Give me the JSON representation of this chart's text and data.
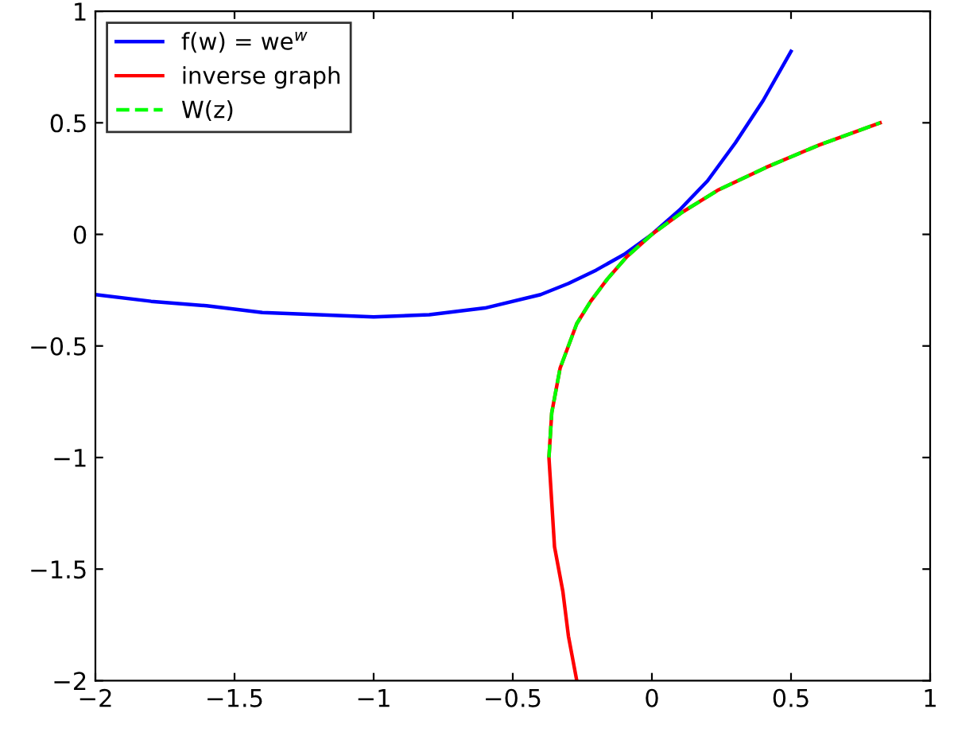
{
  "chart_data": {
    "type": "line",
    "xlim": [
      -2,
      1
    ],
    "ylim": [
      -2,
      1
    ],
    "xticks": [
      {
        "value": -2,
        "label": "−2"
      },
      {
        "value": -1.5,
        "label": "−1.5"
      },
      {
        "value": -1,
        "label": "−1"
      },
      {
        "value": -0.5,
        "label": "−0.5"
      },
      0,
      0.5,
      1
    ],
    "yticks": [
      {
        "value": -2,
        "label": "−2"
      },
      {
        "value": -1.5,
        "label": "−1.5"
      },
      {
        "value": -1,
        "label": "−1"
      },
      {
        "value": -0.5,
        "label": "−0.5"
      },
      0,
      0.5,
      1
    ],
    "grid": false,
    "legend": "top left",
    "series": [
      {
        "name": "f(w) = we$^{w}$",
        "color": "#0000ff",
        "line_style": "solid",
        "x": [
          -2,
          -1.8,
          -1.6,
          -1.4,
          -1.2,
          -1,
          -0.8,
          -0.6,
          -0.4,
          -0.3,
          -0.2,
          -0.1,
          0,
          0.1,
          0.2,
          0.3,
          0.4,
          0.5
        ],
        "values": [
          -0.27,
          -0.3,
          -0.32,
          -0.35,
          -0.36,
          -0.37,
          -0.36,
          -0.33,
          -0.27,
          -0.22,
          -0.16,
          -0.09,
          0,
          0.11,
          0.24,
          0.41,
          0.6,
          0.82
        ]
      },
      {
        "name": "inverse graph",
        "color": "#ff0000",
        "line_style": "solid",
        "x": [
          -0.27,
          -0.3,
          -0.32,
          -0.35,
          -0.36,
          -0.37,
          -0.36,
          -0.33,
          -0.27,
          -0.22,
          -0.16,
          -0.09,
          0,
          0.11,
          0.24,
          0.41,
          0.6,
          0.82
        ],
        "values": [
          -2,
          -1.8,
          -1.6,
          -1.4,
          -1.2,
          -1,
          -0.8,
          -0.6,
          -0.4,
          -0.3,
          -0.2,
          -0.1,
          0,
          0.1,
          0.2,
          0.3,
          0.4,
          0.5
        ]
      },
      {
        "name": "W(z)",
        "color": "#00ff00",
        "line_style": "dashed",
        "x": [
          -0.37,
          -0.36,
          -0.33,
          -0.27,
          -0.22,
          -0.16,
          -0.09,
          0,
          0.11,
          0.24,
          0.41,
          0.6,
          0.82
        ],
        "values": [
          -1,
          -0.8,
          -0.6,
          -0.4,
          -0.3,
          -0.2,
          -0.1,
          0,
          0.1,
          0.2,
          0.3,
          0.4,
          0.5
        ]
      }
    ]
  }
}
